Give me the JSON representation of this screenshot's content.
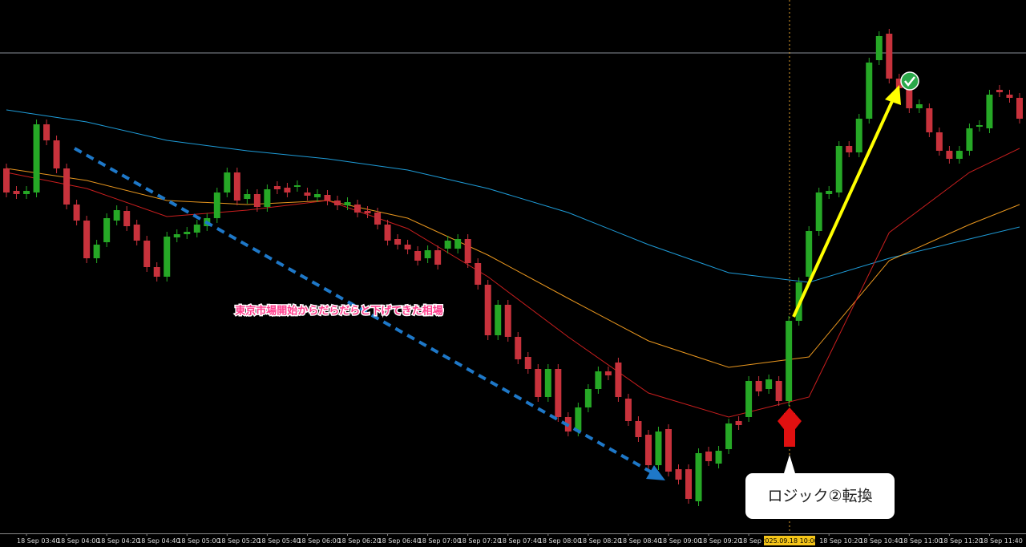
{
  "chart_data": {
    "type": "candlestick",
    "categories": [
      null,
      null,
      "18 Sep 03:40",
      null,
      null,
      null,
      "18 Sep 04:00",
      null,
      null,
      null,
      "18 Sep 04:20",
      null,
      null,
      null,
      "18 Sep 04:40",
      null,
      null,
      null,
      "18 Sep 05:00",
      null,
      null,
      null,
      "18 Sep 05:20",
      null,
      null,
      null,
      "18 Sep 05:40",
      null,
      null,
      null,
      "18 Sep 06:00",
      null,
      null,
      null,
      "18 Sep 06:20",
      null,
      null,
      null,
      "18 Sep 06:40",
      null,
      null,
      null,
      "18 Sep 07:00",
      null,
      null,
      null,
      "18 Sep 07:20",
      null,
      null,
      null,
      "18 Sep 07:40",
      null,
      null,
      null,
      "18 Sep 08:00",
      null,
      null,
      null,
      "18 Sep 08:20",
      null,
      null,
      null,
      "18 Sep 08:40",
      null,
      null,
      null,
      "18 Sep 09:00",
      null,
      null,
      null,
      "18 Sep 09:20",
      null,
      null,
      null,
      "18 Sep 09:40",
      null,
      null,
      null,
      "2025.09.18 10:00",
      null,
      null,
      null,
      "18 Sep 10:20",
      null,
      null,
      null,
      "18 Sep 10:40",
      null,
      null,
      null,
      "18 Sep 11:00",
      null,
      null,
      null,
      "18 Sep 11:20",
      null,
      null,
      null,
      "18 Sep 11:40",
      null,
      null,
      null
    ],
    "open": [
      455,
      427,
      423,
      425,
      510,
      490,
      455,
      410,
      390,
      343,
      363,
      390,
      402,
      385,
      365,
      332,
      320,
      369,
      373,
      375,
      383,
      393,
      425,
      450,
      417,
      423,
      407,
      433,
      431,
      432,
      425,
      419,
      422,
      415,
      409,
      410,
      402,
      400,
      385,
      367,
      360,
      352,
      343,
      353,
      355,
      355,
      367,
      337,
      310,
      247,
      285,
      245,
      220,
      205,
      170,
      205,
      145,
      127,
      157,
      180,
      202,
      213,
      168,
      140,
      123,
      85,
      130,
      80,
      80,
      40,
      102,
      87,
      105,
      140,
      145,
      190,
      180,
      190,
      165,
      265,
      320,
      377,
      423,
      425,
      483,
      475,
      517,
      590,
      623,
      567,
      557,
      530,
      530,
      500,
      477,
      467,
      477,
      507,
      505,
      553,
      547,
      543
    ],
    "close": [
      425,
      423,
      427,
      510,
      490,
      455,
      410,
      390,
      343,
      360,
      393,
      403,
      383,
      365,
      332,
      320,
      370,
      373,
      376,
      385,
      393,
      425,
      450,
      415,
      423,
      407,
      429,
      429,
      425,
      434,
      421,
      423,
      415,
      409,
      413,
      400,
      399,
      385,
      365,
      360,
      354,
      340,
      353,
      335,
      365,
      367,
      337,
      310,
      247,
      285,
      245,
      217,
      205,
      170,
      205,
      145,
      127,
      157,
      180,
      202,
      197,
      170,
      140,
      120,
      85,
      127,
      77,
      67,
      43,
      100,
      90,
      103,
      137,
      135,
      190,
      177,
      192,
      165,
      265,
      313,
      377,
      425,
      427,
      483,
      475,
      517,
      587,
      620,
      567,
      555,
      530,
      535,
      500,
      477,
      467,
      477,
      505,
      509,
      547,
      550,
      543,
      517
    ],
    "up_color": "#26a826",
    "down_color": "#c8323c",
    "ylim": [
      0,
      665
    ],
    "series": [
      {
        "color": "#1e9bd7",
        "x": [
          0,
          8,
          16,
          24,
          32,
          40,
          48,
          56,
          64,
          72,
          80,
          88,
          96,
          101
        ],
        "values": [
          528,
          513,
          490,
          477,
          467,
          453,
          430,
          400,
          360,
          325,
          313,
          343,
          367,
          382
        ]
      },
      {
        "color": "#e8961e",
        "x": [
          0,
          8,
          16,
          24,
          32,
          40,
          48,
          56,
          64,
          72,
          80,
          88,
          96,
          101
        ],
        "values": [
          455,
          440,
          415,
          410,
          415,
          393,
          347,
          293,
          240,
          207,
          220,
          340,
          385,
          410
        ]
      },
      {
        "color": "#c81e1e",
        "x": [
          0,
          8,
          16,
          24,
          32,
          40,
          48,
          56,
          64,
          72,
          80,
          88,
          96,
          101
        ],
        "values": [
          450,
          430,
          395,
          403,
          415,
          380,
          320,
          245,
          175,
          145,
          170,
          375,
          450,
          480
        ]
      }
    ],
    "annotations": {
      "trend_note": "東京市場開始からだらだらと下げてきた相場",
      "callout": "ロジック②転換"
    }
  }
}
